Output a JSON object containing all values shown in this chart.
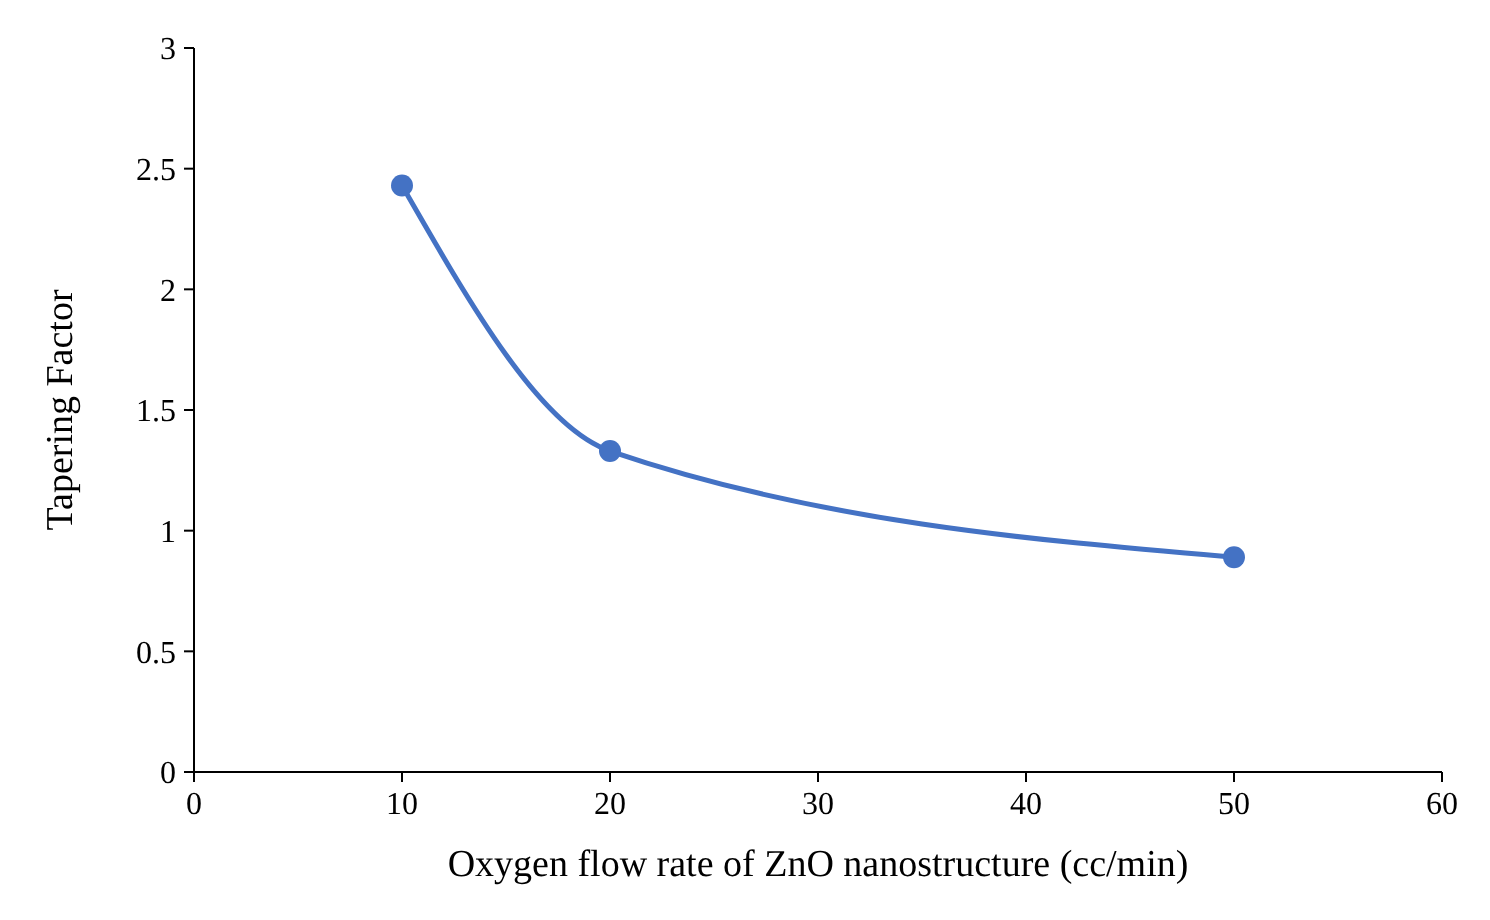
{
  "chart_data": {
    "type": "line",
    "xlabel": "Oxygen flow rate of ZnO nanostructure (cc/min)",
    "ylabel": "Tapering Factor",
    "x": [
      10,
      20,
      50
    ],
    "series": [
      {
        "color": "#4472c4",
        "values": [
          2.43,
          1.33,
          0.89
        ]
      }
    ],
    "xlim": [
      0,
      60
    ],
    "xticks": [
      0,
      10,
      20,
      30,
      40,
      50,
      60
    ],
    "ylim": [
      0,
      3
    ],
    "yticks": [
      0,
      0.5,
      1,
      1.5,
      2,
      2.5,
      3
    ],
    "marker": "circle",
    "line_style": "solid"
  }
}
